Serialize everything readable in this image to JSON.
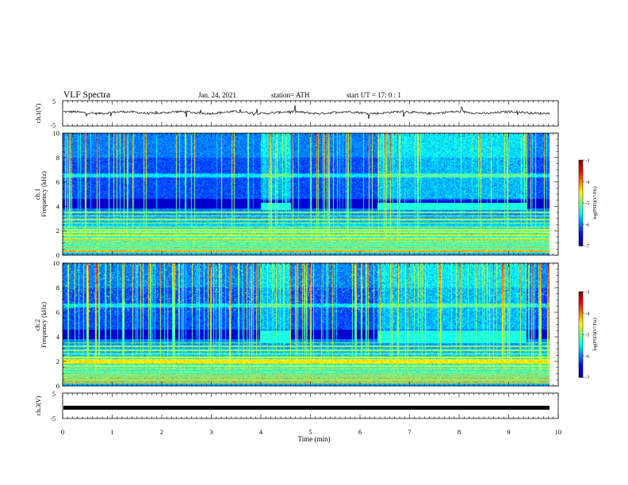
{
  "header": {
    "title": "VLF Spectra",
    "date": "Jan. 24, 2021",
    "station": "station= ATH",
    "start": "start  UT =   17: 0  : 1"
  },
  "chart_data": {
    "type": "heatmap",
    "xlabel": "Time  (min)",
    "xlim": [
      0,
      10
    ],
    "x_ticks": [
      "0",
      "1",
      "2",
      "3",
      "4",
      "5",
      "6",
      "7",
      "8",
      "9",
      "10"
    ],
    "panels": [
      {
        "name": "ch.1 waveform",
        "type": "line",
        "ylabel": "ch.1(V)",
        "ylim": [
          -5,
          5
        ],
        "y_ticks": [
          "5",
          "-5"
        ],
        "offset_level": 0.3
      },
      {
        "name": "ch.1 spectrogram",
        "type": "heatmap",
        "ylabel_line1": "ch.1",
        "ylabel_line2": "Frequency  (kHz)",
        "ylim": [
          0,
          10
        ],
        "y_ticks": [
          "0",
          "2",
          "4",
          "6",
          "8",
          "10"
        ],
        "colorbar": {
          "label": "log(PSD)(V²/Hz)",
          "range": [
            -7,
            -3
          ],
          "ticks": [
            "-3",
            "-4",
            "-5",
            "-6",
            "-7"
          ]
        },
        "chorus_bursts": [
          [
            4.0,
            4.6
          ],
          [
            6.35,
            9.35
          ]
        ],
        "chorus_band_khz": [
          3.7,
          4.3
        ]
      },
      {
        "name": "ch.2 spectrogram",
        "type": "heatmap",
        "ylabel_line1": "ch.2",
        "ylabel_line2": "Frequency  (kHz)",
        "ylim": [
          0,
          10
        ],
        "y_ticks": [
          "0",
          "2",
          "4",
          "6",
          "8",
          "10"
        ],
        "colorbar": {
          "label": "log(PSD)(V²/Hz)",
          "range": [
            -7,
            -3
          ],
          "ticks": [
            "-3",
            "-4",
            "-5",
            "-6",
            "-7"
          ]
        },
        "chorus_bursts": [
          [
            4.0,
            4.6
          ],
          [
            6.35,
            9.35
          ]
        ],
        "chorus_band_khz": [
          3.5,
          4.5
        ]
      },
      {
        "name": "ch.3 waveform",
        "type": "line",
        "ylabel": "ch.3(V)",
        "ylim": [
          -5,
          5
        ],
        "y_ticks": [
          "5",
          "-5"
        ],
        "offset_level": -0.8
      }
    ]
  }
}
